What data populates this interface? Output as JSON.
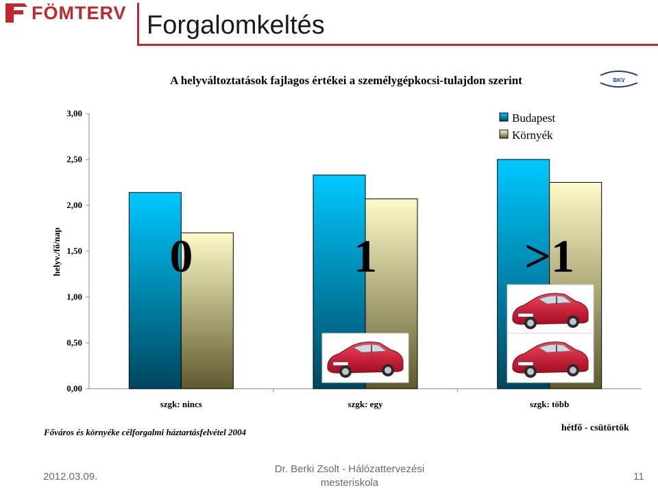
{
  "header": {
    "logo_text": "FÖMTERV",
    "slide_title": "Forgalomkeltés"
  },
  "chart_data": {
    "type": "bar",
    "title": "A helyváltoztatások fajlagos értékei a személygépkocsi-tulajdon szerint",
    "ylabel": "helyv./fő/nap",
    "xlabel": "",
    "ylim": [
      0,
      3
    ],
    "yticks": [
      "0,00",
      "0,50",
      "1,00",
      "1,50",
      "2,00",
      "2,50",
      "3,00"
    ],
    "categories": [
      "szgk: nincs",
      "szgk: egy",
      "szgk: több"
    ],
    "category_big_labels": [
      "0",
      "1",
      ">1"
    ],
    "series": [
      {
        "name": "Budapest",
        "values": [
          2.14,
          2.33,
          2.5
        ],
        "color": "#00b8ea"
      },
      {
        "name": "Környék",
        "values": [
          1.7,
          2.07,
          2.25
        ],
        "color": "#e8e49a"
      }
    ],
    "legend_position": "top-right",
    "grid": false
  },
  "source_note": "Főváros és környéke célforgalmi háztartásfelvétel 2004",
  "days_note": "hétfő - csütörtök",
  "footer": {
    "date": "2012.03.09.",
    "author_line1": "Dr. Berki Zsolt - Hálózattervezési",
    "author_line2": "mesteriskola",
    "page": "11"
  },
  "bkv_logo_text": "BKV"
}
